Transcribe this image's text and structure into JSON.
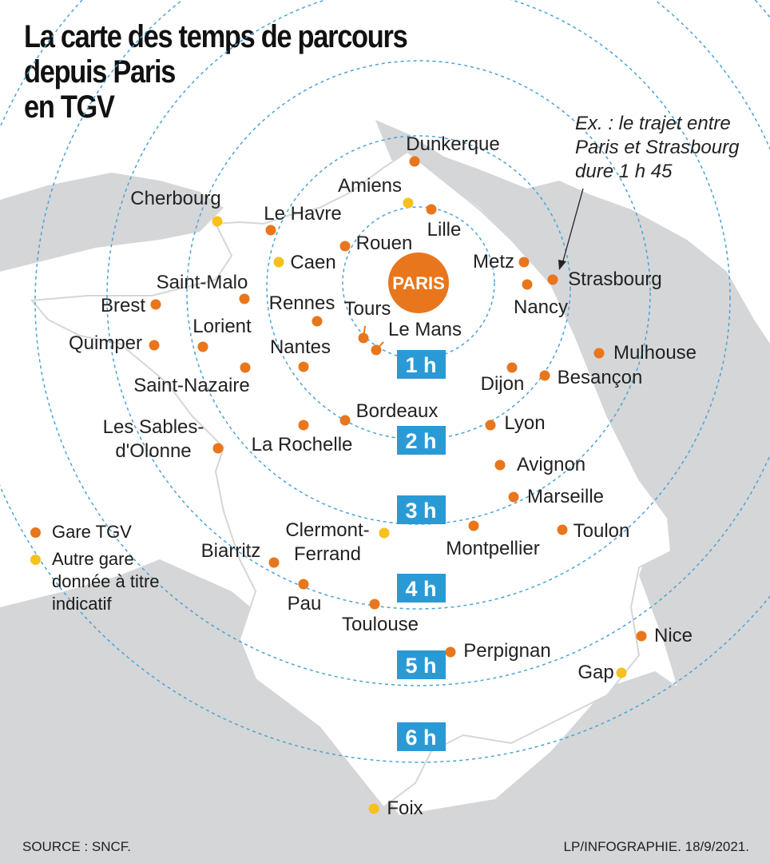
{
  "title": {
    "line1": "La carte des temps de parcours",
    "line2": "depuis Paris",
    "line3": "en TGV"
  },
  "note": {
    "line1": "Ex. : le trajet entre",
    "line2": "Paris et Strasbourg",
    "line3": "dure 1 h 45"
  },
  "center": "PARIS",
  "time_labels": [
    "1 h",
    "2 h",
    "3 h",
    "4 h",
    "5 h",
    "6 h"
  ],
  "legend": {
    "tgv": "Gare TGV",
    "other_line1": "Autre gare",
    "other_line2": "donnée à titre",
    "other_line3": "indicatif"
  },
  "source": "SOURCE : SNCF.",
  "credit": "LP/INFOGRAPHIE.  18/9/2021.",
  "colors": {
    "tgv_station": "#e8761c",
    "other_station": "#f6c11b",
    "time_box": "#2a9ad6",
    "paris": "#e8761c",
    "map_land": "#d5d6d8",
    "ring": "#4aa3d6"
  },
  "stations": [
    {
      "name": "Dunkerque",
      "type": "tgv"
    },
    {
      "name": "Amiens",
      "type": "other"
    },
    {
      "name": "Lille",
      "type": "tgv"
    },
    {
      "name": "Cherbourg",
      "type": "other"
    },
    {
      "name": "Le Havre",
      "type": "tgv"
    },
    {
      "name": "Rouen",
      "type": "tgv"
    },
    {
      "name": "Caen",
      "type": "other"
    },
    {
      "name": "Metz",
      "type": "tgv"
    },
    {
      "name": "Strasbourg",
      "type": "tgv"
    },
    {
      "name": "Nancy",
      "type": "tgv"
    },
    {
      "name": "Saint-Malo",
      "type": "tgv"
    },
    {
      "name": "Brest",
      "type": "tgv"
    },
    {
      "name": "Rennes",
      "type": "tgv"
    },
    {
      "name": "Tours",
      "type": "tgv"
    },
    {
      "name": "Le Mans",
      "type": "tgv"
    },
    {
      "name": "Lorient",
      "type": "tgv"
    },
    {
      "name": "Quimper",
      "type": "tgv"
    },
    {
      "name": "Nantes",
      "type": "tgv"
    },
    {
      "name": "Mulhouse",
      "type": "tgv"
    },
    {
      "name": "Dijon",
      "type": "tgv"
    },
    {
      "name": "Besançon",
      "type": "tgv"
    },
    {
      "name": "Saint-Nazaire",
      "type": "tgv"
    },
    {
      "name": "Bordeaux",
      "type": "tgv"
    },
    {
      "name": "Les Sables-d'Olonne",
      "line1": "Les Sables-",
      "line2": "d'Olonne",
      "type": "tgv"
    },
    {
      "name": "La Rochelle",
      "type": "tgv"
    },
    {
      "name": "Lyon",
      "type": "tgv"
    },
    {
      "name": "Avignon",
      "type": "tgv"
    },
    {
      "name": "Marseille",
      "type": "tgv"
    },
    {
      "name": "Clermont-Ferrand",
      "line1": "Clermont-",
      "line2": "Ferrand",
      "type": "other"
    },
    {
      "name": "Montpellier",
      "type": "tgv"
    },
    {
      "name": "Toulon",
      "type": "tgv"
    },
    {
      "name": "Biarritz",
      "type": "tgv"
    },
    {
      "name": "Pau",
      "type": "tgv"
    },
    {
      "name": "Toulouse",
      "type": "tgv"
    },
    {
      "name": "Perpignan",
      "type": "tgv"
    },
    {
      "name": "Nice",
      "type": "tgv"
    },
    {
      "name": "Gap",
      "type": "other"
    },
    {
      "name": "Foix",
      "type": "other"
    }
  ]
}
